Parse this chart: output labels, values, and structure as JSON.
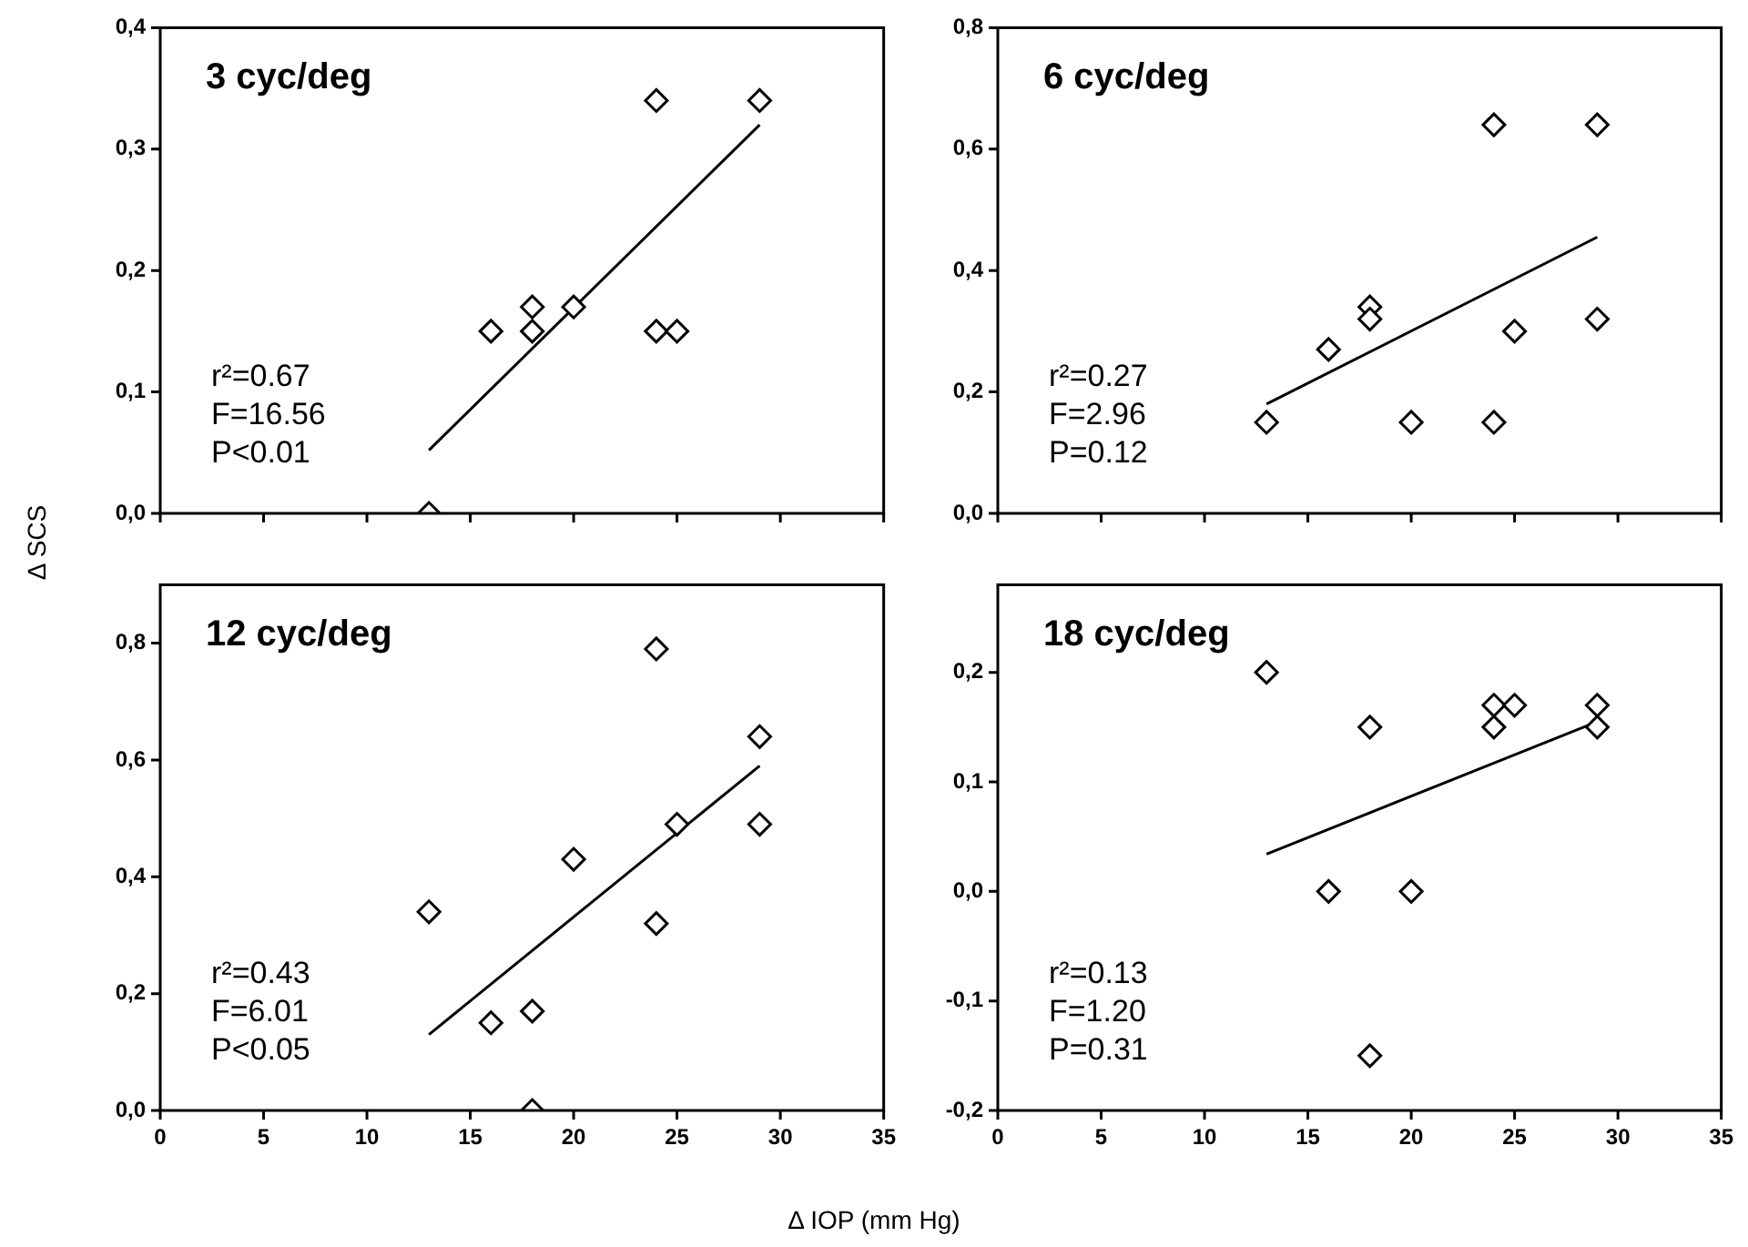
{
  "chart_data": [
    {
      "type": "scatter",
      "title": "3 cyc/deg",
      "ylabel": "Δ SCS",
      "xlim": [
        0,
        35
      ],
      "xticks": [
        0,
        5,
        10,
        15,
        20,
        25,
        30,
        35
      ],
      "ylim": [
        0,
        0.4
      ],
      "yticks": [
        {
          "value": 0,
          "label": "0,0"
        },
        {
          "value": 0.1,
          "label": "0,1"
        },
        {
          "value": 0.2,
          "label": "0,2"
        },
        {
          "value": 0.3,
          "label": "0,3"
        },
        {
          "value": 0.4,
          "label": "0,4"
        }
      ],
      "tick_labels": "y",
      "grid": false,
      "legend": false,
      "marker": "diamond",
      "series": [
        {
          "type": "scatter",
          "color": "#000000",
          "x": [
            13,
            16,
            18,
            18,
            20,
            24,
            24,
            25,
            29
          ],
          "values": [
            0,
            0.15,
            0.17,
            0.15,
            0.17,
            0.34,
            0.15,
            0.15,
            0.34
          ]
        },
        {
          "type": "line",
          "color": "#000000",
          "marker": "none",
          "line_style": "solid",
          "x": [
            13,
            29
          ],
          "values": [
            0.052,
            0.32
          ]
        }
      ],
      "annotations": [
        "r²=0.67",
        "F=16.56",
        "P<0.01"
      ]
    },
    {
      "type": "scatter",
      "title": "6 cyc/deg",
      "xlim": [
        0,
        35
      ],
      "xticks": [
        0,
        5,
        10,
        15,
        20,
        25,
        30,
        35
      ],
      "ylim": [
        0,
        0.8
      ],
      "yticks": [
        {
          "value": 0,
          "label": "0,0"
        },
        {
          "value": 0.2,
          "label": "0,2"
        },
        {
          "value": 0.4,
          "label": "0,4"
        },
        {
          "value": 0.6,
          "label": "0,6"
        },
        {
          "value": 0.8,
          "label": "0,8"
        }
      ],
      "tick_labels": "y",
      "grid": false,
      "legend": false,
      "marker": "diamond",
      "series": [
        {
          "type": "scatter",
          "color": "#000000",
          "x": [
            13,
            16,
            18,
            18,
            20,
            24,
            24,
            25,
            29,
            29
          ],
          "values": [
            0.15,
            0.27,
            0.34,
            0.32,
            0.15,
            0.64,
            0.15,
            0.3,
            0.64,
            0.32
          ]
        },
        {
          "type": "line",
          "color": "#000000",
          "marker": "none",
          "line_style": "solid",
          "x": [
            13,
            29
          ],
          "values": [
            0.18,
            0.455
          ]
        }
      ],
      "annotations": [
        "r²=0.27",
        "F=2.96",
        "P=0.12"
      ]
    },
    {
      "type": "scatter",
      "title": "12 cyc/deg",
      "xlabel": "Δ IOP (mm Hg)",
      "xlim": [
        0,
        35
      ],
      "xticks": [
        0,
        5,
        10,
        15,
        20,
        25,
        30,
        35
      ],
      "ylim": [
        0,
        0.9
      ],
      "yticks": [
        {
          "value": 0,
          "label": "0,0"
        },
        {
          "value": 0.2,
          "label": "0,2"
        },
        {
          "value": 0.4,
          "label": "0,4"
        },
        {
          "value": 0.6,
          "label": "0,6"
        },
        {
          "value": 0.8,
          "label": "0,8"
        }
      ],
      "grid": false,
      "legend": false,
      "marker": "diamond",
      "series": [
        {
          "type": "scatter",
          "color": "#000000",
          "x": [
            13,
            16,
            18,
            18,
            20,
            24,
            24,
            25,
            29,
            29
          ],
          "values": [
            0.34,
            0.15,
            0.17,
            0,
            0.43,
            0.79,
            0.32,
            0.49,
            0.64,
            0.49
          ]
        },
        {
          "type": "line",
          "color": "#000000",
          "marker": "none",
          "line_style": "solid",
          "x": [
            13,
            29
          ],
          "values": [
            0.13,
            0.59
          ]
        }
      ],
      "annotations": [
        "r²=0.43",
        "F=6.01",
        "P<0.05"
      ]
    },
    {
      "type": "scatter",
      "title": "18 cyc/deg",
      "xlim": [
        0,
        35
      ],
      "xticks": [
        0,
        5,
        10,
        15,
        20,
        25,
        30,
        35
      ],
      "ylim": [
        -0.2,
        0.28
      ],
      "yticks": [
        {
          "value": -0.2,
          "label": "-0,2"
        },
        {
          "value": -0.1,
          "label": "-0,1"
        },
        {
          "value": 0,
          "label": "0,0"
        },
        {
          "value": 0.1,
          "label": "0,1"
        },
        {
          "value": 0.2,
          "label": "0,2"
        }
      ],
      "grid": false,
      "legend": false,
      "marker": "diamond",
      "series": [
        {
          "type": "scatter",
          "color": "#000000",
          "x": [
            13,
            16,
            18,
            18,
            20,
            24,
            24,
            25,
            29,
            29
          ],
          "values": [
            0.2,
            0,
            0.15,
            -0.15,
            0,
            0.17,
            0.15,
            0.17,
            0.17,
            0.15
          ]
        },
        {
          "type": "line",
          "color": "#000000",
          "marker": "none",
          "line_style": "solid",
          "x": [
            13,
            29
          ],
          "values": [
            0.034,
            0.155
          ]
        }
      ],
      "annotations": [
        "r²=0.13",
        "F=1.20",
        "P=0.31"
      ]
    }
  ]
}
